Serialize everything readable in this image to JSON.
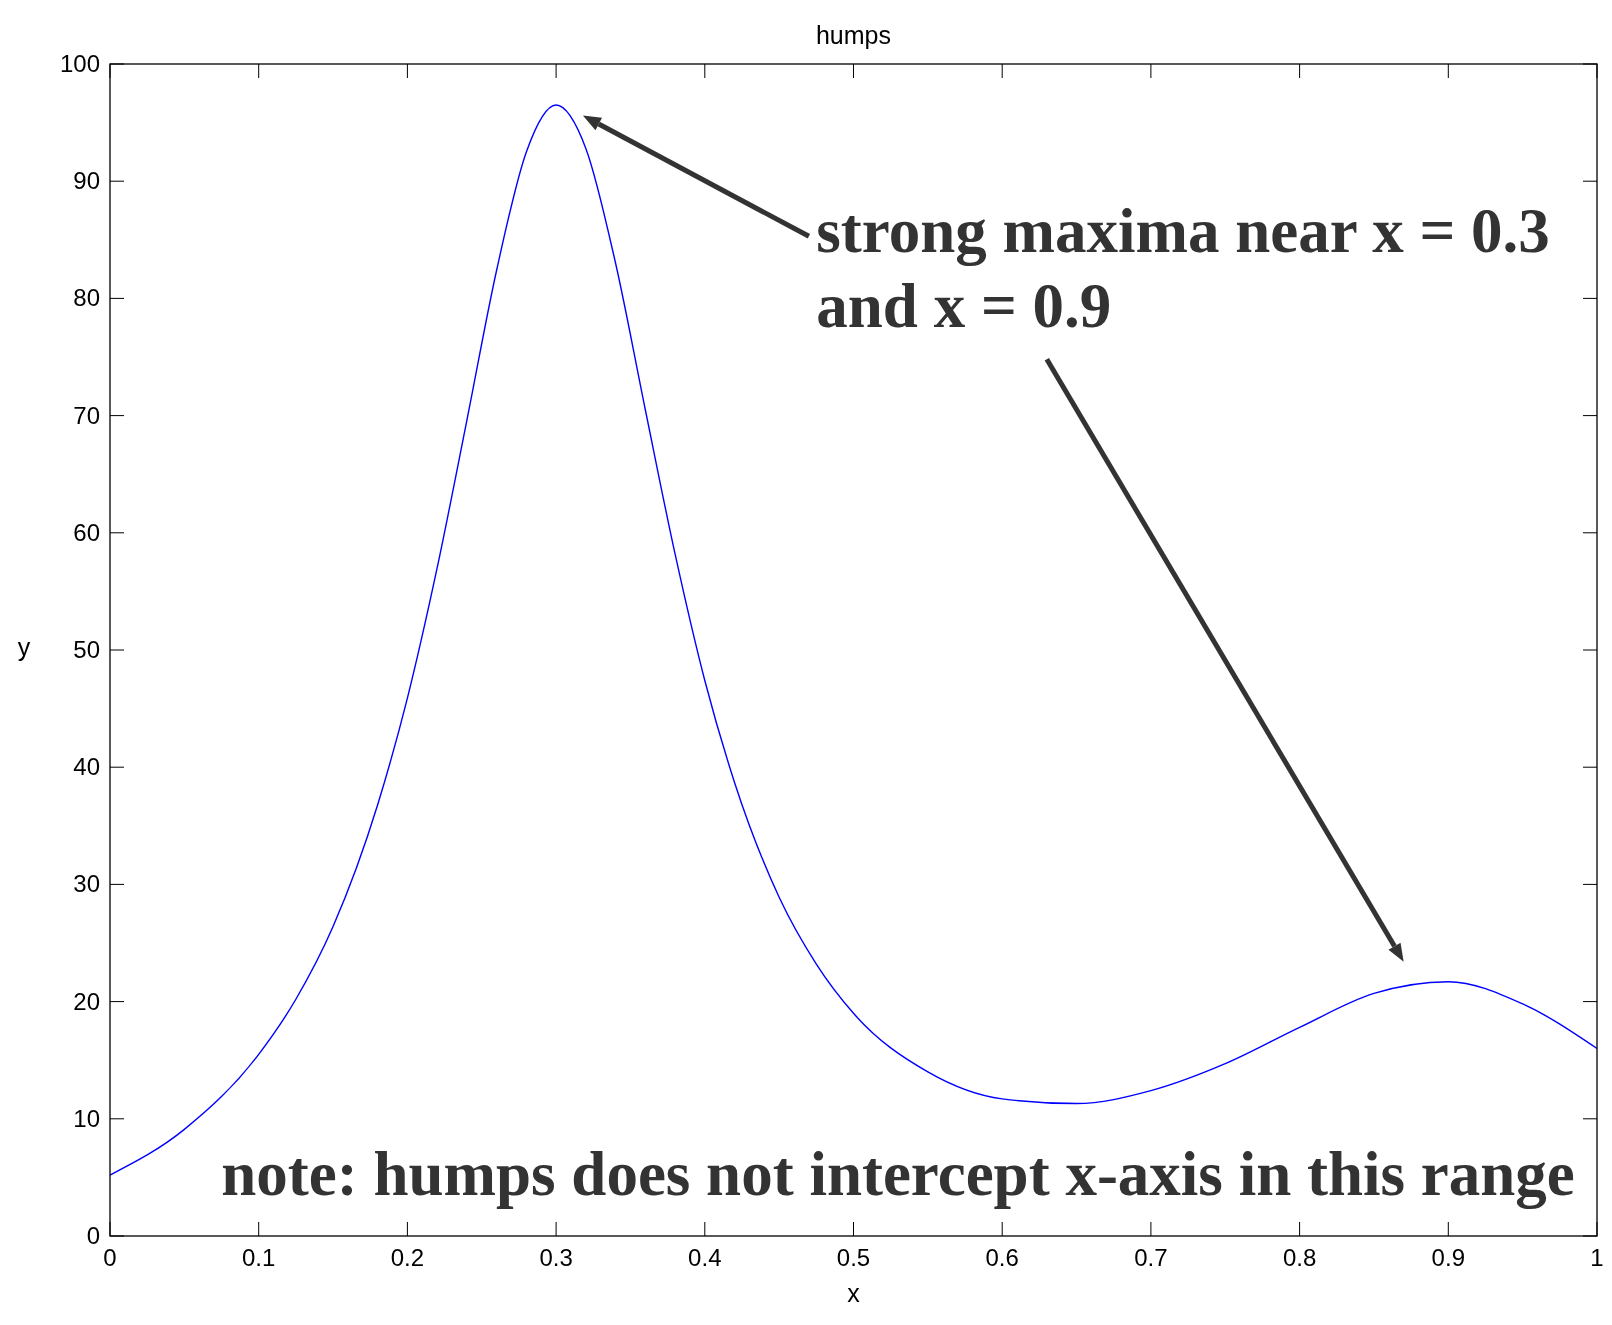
{
  "chart_data": {
    "type": "line",
    "title": "humps",
    "xlabel": "x",
    "ylabel": "y",
    "x": [
      0,
      0.05,
      0.1,
      0.125,
      0.15,
      0.18,
      0.2,
      0.22,
      0.24,
      0.26,
      0.28,
      0.3,
      0.32,
      0.34,
      0.36,
      0.38,
      0.4,
      0.42,
      0.45,
      0.475,
      0.5,
      0.55,
      0.6,
      0.65,
      0.7,
      0.75,
      0.8,
      0.85,
      0.9,
      0.95,
      1
    ],
    "series": [
      {
        "color": "#0000ff",
        "values": [
          5.2,
          9.1,
          15.5,
          20.2,
          26.4,
          36.8,
          45.9,
          57.0,
          69.6,
          82.4,
          92.5,
          96.5,
          92.8,
          83.0,
          70.5,
          58.2,
          47.4,
          38.7,
          28.9,
          23.2,
          19.0,
          14.0,
          11.7,
          11.3,
          12.4,
          14.7,
          17.8,
          20.7,
          21.7,
          19.8,
          16.0
        ]
      }
    ],
    "xlim": [
      0,
      1
    ],
    "ylim": [
      0,
      100
    ],
    "xticks": [
      0,
      0.1,
      0.2,
      0.3,
      0.4,
      0.5,
      0.6,
      0.7,
      0.8,
      0.9,
      1
    ],
    "yticks": [
      0,
      10,
      20,
      30,
      40,
      50,
      60,
      70,
      80,
      90,
      100
    ],
    "grid": false,
    "marker": "none",
    "line_style": "solid",
    "annotations": [
      "strong maxima near x = 0.3\nand x = 0.9",
      "note: humps does not intercept x-axis in this range"
    ]
  }
}
